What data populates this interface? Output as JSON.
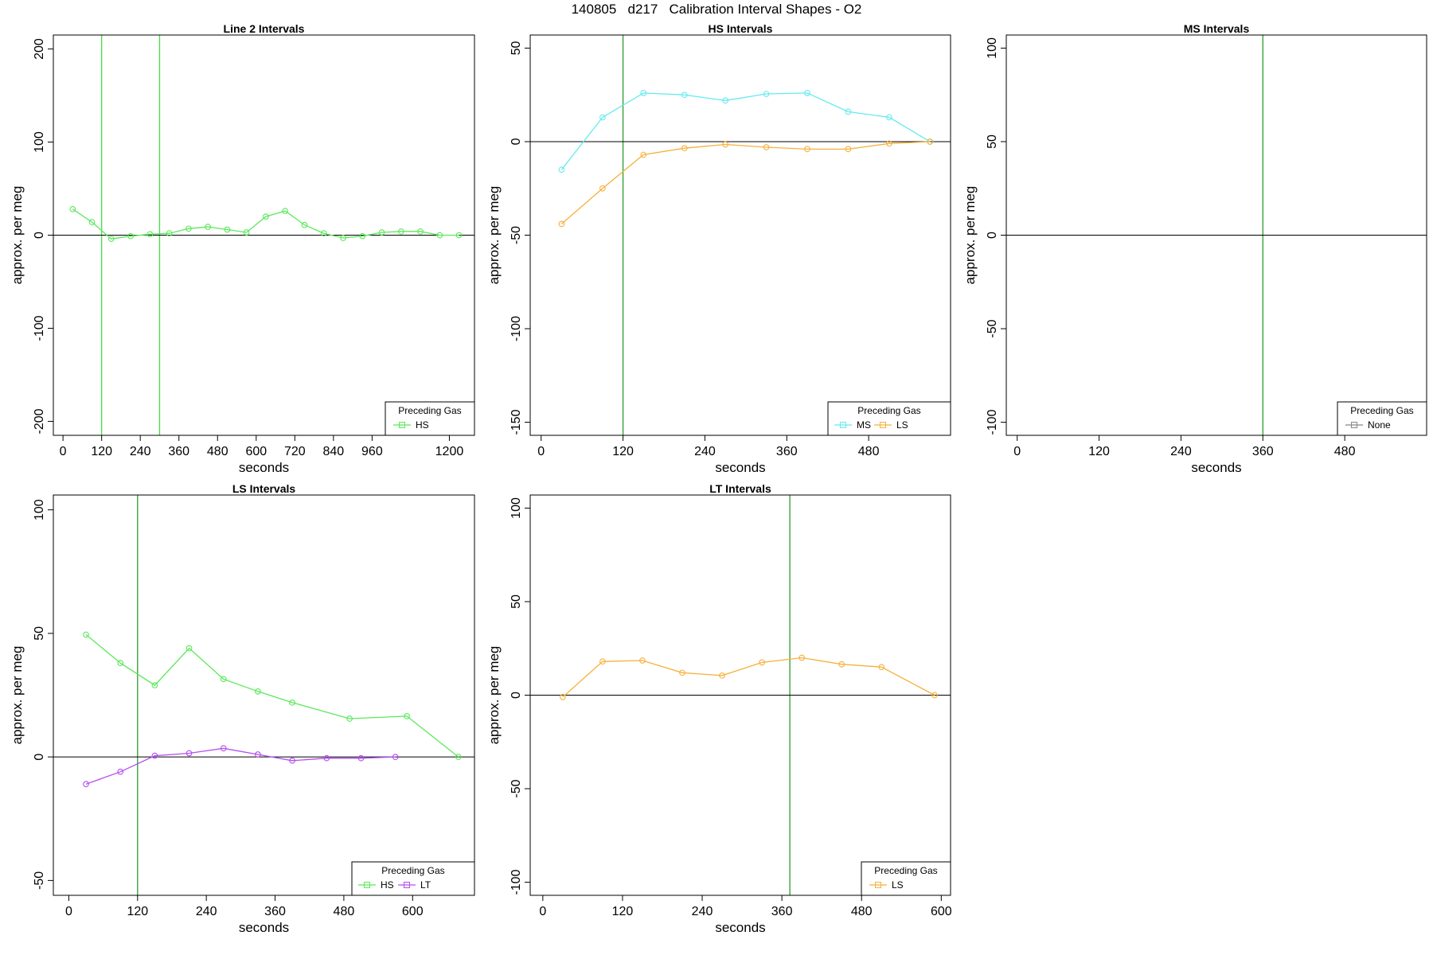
{
  "title": "140805   d217   Calibration Interval Shapes - O2",
  "colors": {
    "HS": "#5be85b",
    "MS": "#66eaf0",
    "LS": "#f5b13c",
    "LT": "#b34df0",
    "None": "#888888",
    "vline": "#2e9b2e",
    "vline_light": "#44dd44"
  },
  "chart_data": [
    {
      "type": "line",
      "title": "Line 2 Intervals",
      "xlabel": "seconds",
      "ylabel": "approx. per meg",
      "xlim": [
        -30,
        1278
      ],
      "ylim": [
        -215,
        215
      ],
      "xticks": [
        0,
        120,
        240,
        360,
        480,
        600,
        720,
        840,
        960,
        1200
      ],
      "yticks": [
        -200,
        -100,
        0,
        100,
        200
      ],
      "vlines": [
        {
          "x": 120,
          "color": "vline_light"
        },
        {
          "x": 300,
          "color": "vline_light"
        }
      ],
      "legend": {
        "title": "Preceding Gas",
        "entries": [
          "HS"
        ]
      },
      "series": [
        {
          "name": "HS",
          "x": [
            30,
            90,
            150,
            210,
            270,
            330,
            390,
            450,
            510,
            570,
            630,
            690,
            750,
            810,
            870,
            930,
            990,
            1050,
            1110,
            1170,
            1230
          ],
          "y": [
            28,
            14,
            -4,
            -1,
            1,
            2,
            7,
            9,
            6,
            3,
            20,
            26,
            11,
            2,
            -3,
            -1,
            3,
            4,
            4,
            0,
            0
          ]
        }
      ]
    },
    {
      "type": "line",
      "title": "HS Intervals",
      "xlabel": "seconds",
      "ylabel": "approx. per meg",
      "xlim": [
        -16,
        600
      ],
      "ylim": [
        -157,
        57
      ],
      "xticks": [
        0,
        120,
        240,
        360,
        480
      ],
      "yticks": [
        -150,
        -100,
        -50,
        0,
        50
      ],
      "vlines": [
        {
          "x": 120,
          "color": "vline"
        }
      ],
      "legend": {
        "title": "Preceding Gas",
        "entries": [
          "MS",
          "LS"
        ]
      },
      "series": [
        {
          "name": "MS",
          "x": [
            30,
            90,
            150,
            210,
            270,
            330,
            390,
            450,
            510,
            570
          ],
          "y": [
            -15,
            13,
            26,
            25,
            22,
            25.5,
            26,
            16,
            13,
            0
          ]
        },
        {
          "name": "LS",
          "x": [
            30,
            90,
            150,
            210,
            270,
            330,
            390,
            450,
            510,
            570
          ],
          "y": [
            -44,
            -25,
            -7,
            -3.5,
            -1.5,
            -3,
            -4,
            -4,
            -1,
            0
          ]
        }
      ]
    },
    {
      "type": "line",
      "title": "MS Intervals",
      "xlabel": "seconds",
      "ylabel": "approx. per meg",
      "xlim": [
        -16,
        600
      ],
      "ylim": [
        -107,
        107
      ],
      "xticks": [
        0,
        120,
        240,
        360,
        480
      ],
      "yticks": [
        -100,
        -50,
        0,
        50,
        100
      ],
      "vlines": [
        {
          "x": 360,
          "color": "vline"
        }
      ],
      "legend": {
        "title": "Preceding Gas",
        "entries": [
          "None"
        ]
      },
      "series": []
    },
    {
      "type": "line",
      "title": "LS Intervals",
      "xlabel": "seconds",
      "ylabel": "approx. per meg",
      "xlim": [
        -27,
        708
      ],
      "ylim": [
        -56,
        106
      ],
      "xticks": [
        0,
        120,
        240,
        360,
        480,
        600
      ],
      "yticks": [
        -50,
        0,
        50,
        100
      ],
      "vlines": [
        {
          "x": 120,
          "color": "vline"
        }
      ],
      "legend": {
        "title": "Preceding Gas",
        "entries": [
          "HS",
          "LT"
        ]
      },
      "series": [
        {
          "name": "HS",
          "x": [
            30,
            90,
            150,
            210,
            270,
            330,
            390,
            490,
            590,
            680
          ],
          "y": [
            49.5,
            38,
            29,
            44,
            31.5,
            26.5,
            22,
            15.5,
            16.5,
            0
          ]
        },
        {
          "name": "LT",
          "x": [
            30,
            90,
            150,
            210,
            270,
            330,
            390,
            450,
            510,
            570
          ],
          "y": [
            -11,
            -6,
            0.5,
            1.5,
            3.5,
            1,
            -1.5,
            -0.5,
            -0.5,
            0
          ]
        }
      ]
    },
    {
      "type": "line",
      "title": "LT Intervals",
      "xlabel": "seconds",
      "ylabel": "approx. per meg",
      "xlim": [
        -19,
        614
      ],
      "ylim": [
        -107,
        107
      ],
      "xticks": [
        0,
        120,
        240,
        360,
        480,
        600
      ],
      "yticks": [
        -100,
        -50,
        0,
        50,
        100
      ],
      "vlines": [
        {
          "x": 372,
          "color": "vline"
        }
      ],
      "legend": {
        "title": "Preceding Gas",
        "entries": [
          "LS"
        ]
      },
      "series": [
        {
          "name": "LS",
          "x": [
            30,
            90,
            150,
            210,
            270,
            330,
            390,
            450,
            510,
            590
          ],
          "y": [
            -1,
            18,
            18.5,
            12,
            10.5,
            17.5,
            20,
            16.5,
            15,
            0
          ]
        }
      ]
    }
  ]
}
